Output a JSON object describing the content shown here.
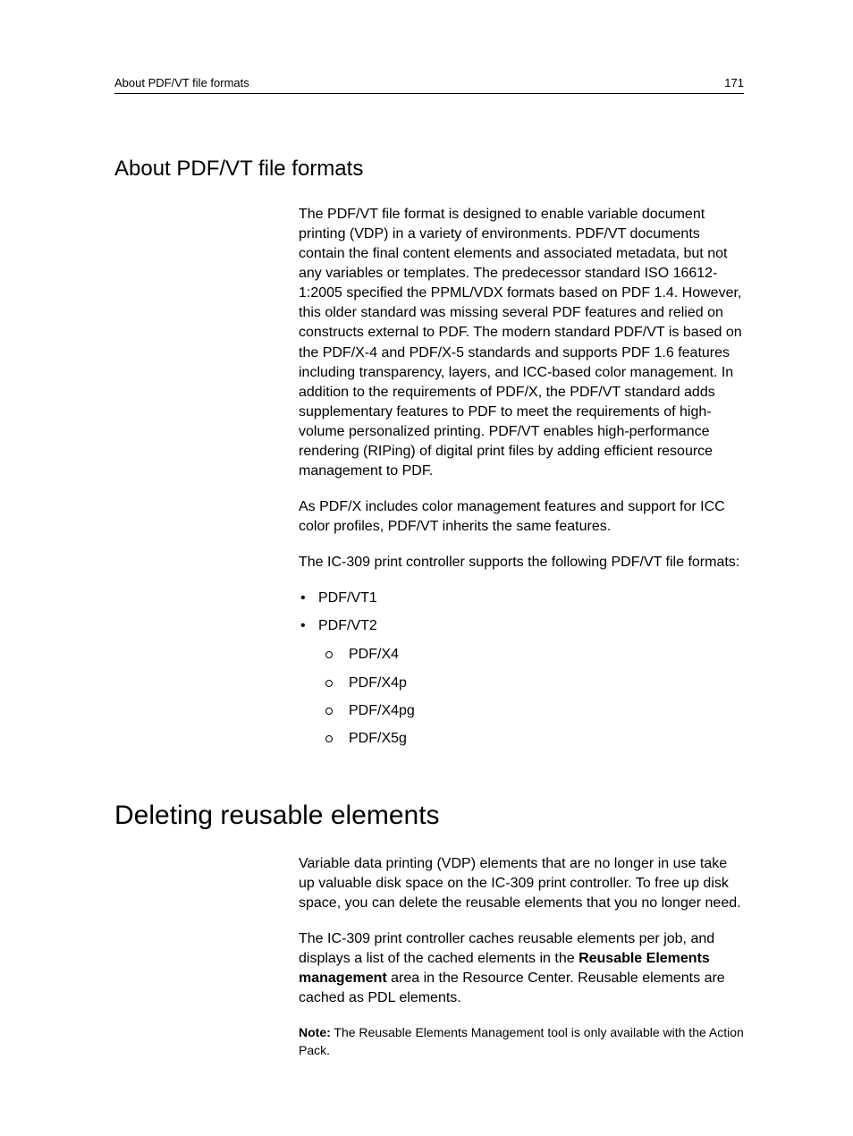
{
  "header": {
    "title": "About PDF/VT file formats",
    "page_number": "171"
  },
  "section1": {
    "heading": "About PDF/VT file formats",
    "p1": "The PDF/VT file format is designed to enable variable document printing (VDP) in a variety of environments. PDF/VT documents contain the final content elements and associated metadata, but not any variables or templates. The predecessor standard ISO 16612-1:2005 specified the PPML/VDX formats based on PDF 1.4. However, this older standard was missing several PDF features and relied on constructs external to PDF. The modern standard PDF/VT is based on the PDF/X-4 and PDF/X-5 standards and supports PDF 1.6 features including transparency, layers, and ICC-based color management. In addition to the requirements of PDF/X, the PDF/VT standard adds supplementary features to PDF to meet the requirements of high-volume personalized printing. PDF/VT enables high-performance rendering (RIPing) of digital print files by adding efficient resource management to PDF.",
    "p2": "As PDF/X includes color management features and support for ICC color profiles, PDF/VT inherits the same features.",
    "p3": "The IC-309 print controller supports the following PDF/VT file formats:",
    "list1": {
      "i1": "PDF/VT1",
      "i2": "PDF/VT2",
      "sub": {
        "s1": "PDF/X4",
        "s2": "PDF/X4p",
        "s3": "PDF/X4pg",
        "s4": "PDF/X5g"
      }
    }
  },
  "section2": {
    "heading": "Deleting reusable elements",
    "p1": "Variable data printing (VDP) elements that are no longer in use take up valuable disk space on the IC-309 print controller. To free up disk space, you can delete the reusable elements that you no longer need.",
    "p2_a": "The IC-309 print controller caches reusable elements per job, and displays a list of the cached elements in the ",
    "p2_bold": "Reusable Elements management",
    "p2_b": " area in the Resource Center. Reusable elements are cached as PDL elements.",
    "note_label": "Note:",
    "note_text": " The Reusable Elements Management tool is only available with the Action Pack."
  }
}
